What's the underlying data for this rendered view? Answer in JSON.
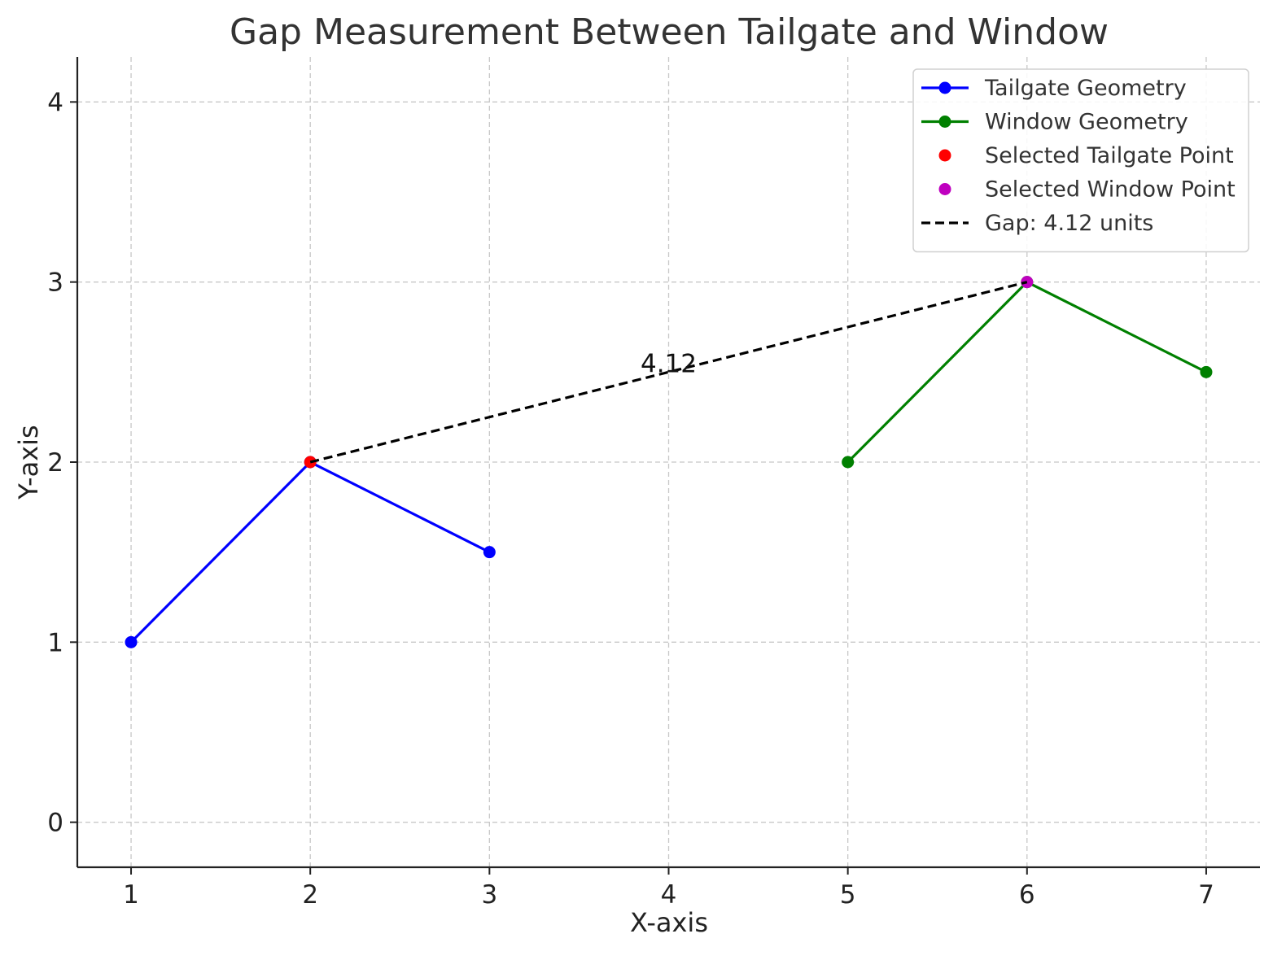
{
  "chart_data": {
    "type": "line",
    "title": "Gap Measurement Between Tailgate and Window",
    "xlabel": "X-axis",
    "ylabel": "Y-axis",
    "xlim": [
      0.7,
      7.3
    ],
    "ylim": [
      -0.25,
      4.25
    ],
    "xticks": [
      1,
      2,
      3,
      4,
      5,
      6,
      7
    ],
    "yticks": [
      0,
      1,
      2,
      3,
      4
    ],
    "grid": true,
    "legend_position": "top-right",
    "series": [
      {
        "name": "Tailgate Geometry",
        "kind": "line-marker",
        "color": "#0000ff",
        "points": [
          [
            1,
            1
          ],
          [
            2,
            2
          ],
          [
            3,
            1.5
          ]
        ]
      },
      {
        "name": "Window Geometry",
        "kind": "line-marker",
        "color": "#008000",
        "points": [
          [
            5,
            2
          ],
          [
            6,
            3
          ],
          [
            7,
            2.5
          ]
        ]
      },
      {
        "name": "Selected Tailgate Point",
        "kind": "marker",
        "color": "#ff0000",
        "points": [
          [
            2,
            2
          ]
        ]
      },
      {
        "name": "Selected Window Point",
        "kind": "marker",
        "color": "#bf00bf",
        "points": [
          [
            6,
            3
          ]
        ]
      },
      {
        "name": "Gap: 4.12 units",
        "kind": "dashed-line",
        "color": "#000000",
        "points": [
          [
            2,
            2
          ],
          [
            6,
            3
          ]
        ]
      }
    ],
    "annotations": [
      {
        "text": "4.12",
        "x": 4,
        "y": 2.5
      }
    ]
  }
}
